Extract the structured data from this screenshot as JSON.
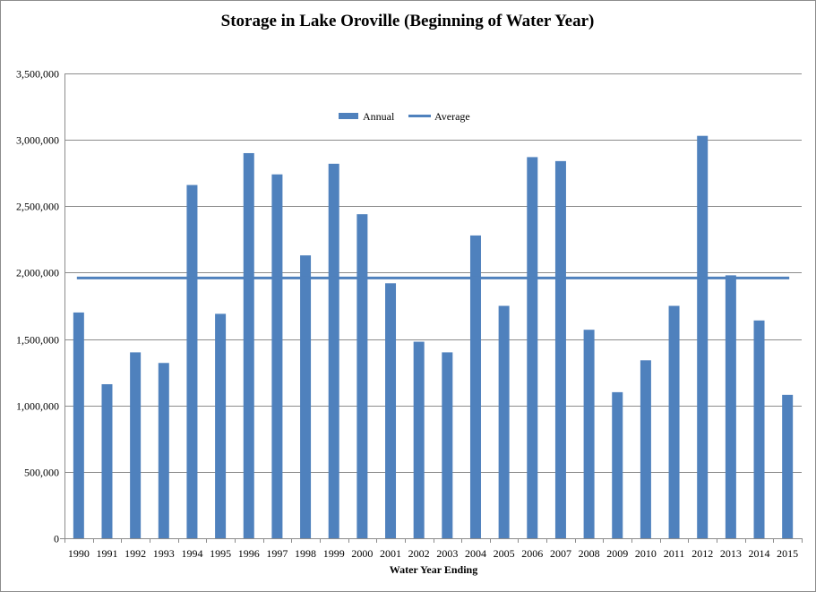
{
  "chart_data": {
    "type": "bar",
    "title": "Storage in Lake Oroville  (Beginning of Water Year)",
    "xlabel": "Water Year Ending",
    "ylabel": "",
    "ylim": [
      0,
      3500000
    ],
    "yticks": [
      0,
      500000,
      1000000,
      1500000,
      2000000,
      2500000,
      3000000,
      3500000
    ],
    "ytick_labels": [
      "0",
      "500,000",
      "1,000,000",
      "1,500,000",
      "2,000,000",
      "2,500,000",
      "3,000,000",
      "3,500,000"
    ],
    "grid": true,
    "legend_position": "top-center",
    "categories": [
      "1990",
      "1991",
      "1992",
      "1993",
      "1994",
      "1995",
      "1996",
      "1997",
      "1998",
      "1999",
      "2000",
      "2001",
      "2002",
      "2003",
      "2004",
      "2005",
      "2006",
      "2007",
      "2008",
      "2009",
      "2010",
      "2011",
      "2012",
      "2013",
      "2014",
      "2015"
    ],
    "series": [
      {
        "name": "Annual",
        "kind": "bar",
        "color": "#4f81bd",
        "values": [
          1700000,
          1160000,
          1400000,
          1320000,
          2660000,
          1690000,
          2900000,
          2740000,
          2130000,
          2820000,
          2440000,
          1920000,
          1480000,
          1400000,
          2280000,
          1750000,
          2870000,
          2840000,
          1570000,
          1100000,
          1340000,
          1750000,
          3030000,
          1980000,
          1640000,
          1080000
        ]
      },
      {
        "name": "Average",
        "kind": "line",
        "color": "#4f81bd",
        "value": 1960000
      }
    ]
  }
}
